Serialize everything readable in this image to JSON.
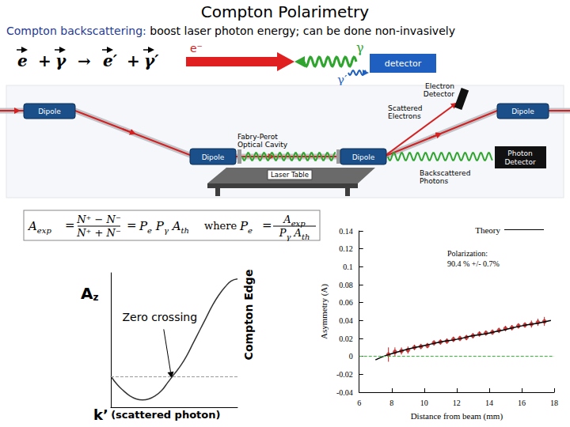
{
  "slide": {
    "title": "Compton Polarimetry",
    "subtitle": {
      "lead": "Compton backscattering:",
      "rest": "boost laser photon energy; can be done non-invasively"
    },
    "reaction": [
      "e",
      "+",
      "γ",
      "→",
      "e′",
      "+",
      "γ′"
    ],
    "sketch": {
      "electron": "e⁻",
      "photon": "γ",
      "detector": "detector",
      "scattered_photon": "γ′"
    },
    "setup": {
      "dipoles": [
        "Dipole",
        "Dipole",
        "Dipole",
        "Dipole"
      ],
      "cavity": [
        "Fabry-Perot",
        "Optical Cavity"
      ],
      "laser_table": "Laser Table",
      "electron_detector": [
        "Electron",
        "Detector"
      ],
      "scattered_electrons": [
        "Scattered",
        "Electrons"
      ],
      "photon_detector": [
        "Photon",
        "Detector"
      ],
      "backscattered_photons": [
        "Backscattered",
        "Photons"
      ]
    },
    "formula": {
      "lhs": [
        [
          "A",
          "exp"
        ]
      ],
      "equals": "=",
      "numerator": [
        "N⁺ − N⁻"
      ],
      "denominator": [
        "N⁺ + N⁻"
      ],
      "product": [
        [
          "P",
          "e"
        ],
        [
          "P",
          "γ"
        ],
        [
          "A",
          "th"
        ]
      ],
      "where": "where",
      "result": [
        [
          "P",
          "e"
        ]
      ],
      "result_numerator": [
        [
          "A",
          "exp"
        ]
      ],
      "result_denominator": [
        [
          "P",
          "γ"
        ],
        [
          "A",
          "th"
        ]
      ]
    }
  },
  "chart_data": [
    {
      "type": "line",
      "ylabel": [
        "A",
        "z"
      ],
      "xlabel": [
        "k’",
        "(scattered photon)"
      ],
      "edge_label": "Compton Edge",
      "zero_crossing": {
        "text": "Zero crossing",
        "x": 0.48,
        "y": -0.001
      },
      "x": [
        0,
        0.05,
        0.1,
        0.15,
        0.2,
        0.25,
        0.3,
        0.35,
        0.4,
        0.45,
        0.5,
        0.55,
        0.6,
        0.65,
        0.7,
        0.75,
        0.8,
        0.85,
        0.9,
        0.95,
        1.0
      ],
      "values": [
        0,
        -0.004,
        -0.007,
        -0.0095,
        -0.011,
        -0.0115,
        -0.011,
        -0.0095,
        -0.007,
        -0.003,
        0.001,
        0.005,
        0.01,
        0.016,
        0.022,
        0.028,
        0.034,
        0.039,
        0.043,
        0.046,
        0.047
      ],
      "color": "#333333",
      "line_style": "solid",
      "xlim": [
        0,
        1
      ],
      "ylim": [
        -0.015,
        0.05
      ],
      "tick_labels": false,
      "grid": false,
      "reference_lines": [
        {
          "y": 0,
          "color": "#999999",
          "line_style": "dashed"
        }
      ]
    },
    {
      "type": "scatter",
      "xlabel": "Distance from beam (mm)",
      "ylabel": "Asymmetry (A)",
      "xlim": [
        6,
        18
      ],
      "xticks": [
        6,
        8,
        10,
        12,
        14,
        16,
        18
      ],
      "ylim": [
        -0.04,
        0.14
      ],
      "yticks": [
        -0.04,
        -0.02,
        0,
        0.02,
        0.04,
        0.06,
        0.08,
        0.1,
        0.12,
        0.14
      ],
      "grid": false,
      "legend": "upper right",
      "annotation": [
        "Polarization:",
        "90.4 % +/- 0.7%"
      ],
      "reference_lines": [
        {
          "y": 0,
          "color": "#33bb33",
          "line_style": "dashed"
        }
      ],
      "series": [
        {
          "name": "Theory",
          "type": "line",
          "color": "#000000",
          "line_style": "solid",
          "x": [
            7,
            7.5,
            8,
            9,
            10,
            11,
            12,
            13,
            14,
            15,
            16,
            17,
            17.8
          ],
          "values": [
            -0.004,
            0.0,
            0.003,
            0.008,
            0.012,
            0.016,
            0.019,
            0.023,
            0.026,
            0.03,
            0.034,
            0.037,
            0.04
          ]
        },
        {
          "type": "scatter",
          "color": "#cc2222",
          "marker": "circle",
          "x": [
            7.8,
            8.2,
            8.6,
            9.0,
            9.4,
            9.8,
            10.2,
            10.6,
            11.0,
            11.4,
            11.8,
            12.2,
            12.6,
            13.0,
            13.4,
            13.8,
            14.2,
            14.6,
            15.0,
            15.4,
            15.8,
            16.2,
            16.6,
            17.0,
            17.4
          ],
          "values": [
            0.002,
            0.005,
            0.006,
            0.007,
            0.01,
            0.011,
            0.012,
            0.015,
            0.016,
            0.017,
            0.019,
            0.02,
            0.021,
            0.023,
            0.025,
            0.026,
            0.027,
            0.029,
            0.031,
            0.032,
            0.034,
            0.035,
            0.036,
            0.038,
            0.039
          ],
          "errors": [
            0.008,
            0.005,
            0.004,
            0.004,
            0.003,
            0.003,
            0.003,
            0.003,
            0.003,
            0.003,
            0.003,
            0.003,
            0.003,
            0.003,
            0.003,
            0.003,
            0.003,
            0.003,
            0.003,
            0.003,
            0.003,
            0.003,
            0.004,
            0.004,
            0.005
          ]
        }
      ]
    }
  ]
}
